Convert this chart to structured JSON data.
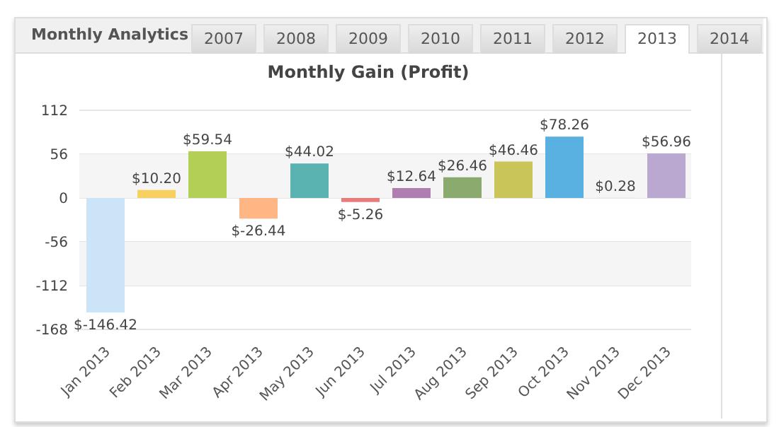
{
  "chart_data": {
    "type": "bar",
    "title": "Monthly Gain (Profit)",
    "categories": [
      "Jan 2013",
      "Feb 2013",
      "Mar 2013",
      "Apr 2013",
      "May 2013",
      "Jun 2013",
      "Jul 2013",
      "Aug 2013",
      "Sep 2013",
      "Oct 2013",
      "Nov 2013",
      "Dec 2013"
    ],
    "values": [
      -146.42,
      10.2,
      59.54,
      -26.44,
      44.02,
      -5.26,
      12.64,
      26.46,
      46.46,
      78.26,
      0.28,
      56.96
    ],
    "colors": [
      "#cce4f7",
      "#f7d060",
      "#b3cf55",
      "#ffb685",
      "#5ab3b0",
      "#e87b7b",
      "#b07db0",
      "#8aaa6e",
      "#c9c558",
      "#58b1e0",
      "#d9d9d9",
      "#bba8d1"
    ],
    "value_labels": [
      "$-146.42",
      "$10.20",
      "$59.54",
      "$-26.44",
      "$44.02",
      "$-5.26",
      "$12.64",
      "$26.46",
      "$46.46",
      "$78.26",
      "$0.28",
      "$56.96"
    ],
    "ylim": [
      -168,
      112
    ],
    "yticks": [
      -168,
      -112,
      -56,
      0,
      56,
      112
    ],
    "bands": [
      {
        "axis": "y",
        "from": 0,
        "to": 56,
        "color": "#f5f5f5"
      },
      {
        "axis": "y",
        "from": -112,
        "to": -56,
        "color": "#f5f5f5"
      }
    ],
    "grid": "y",
    "annotations": [
      "Monthly Analytics",
      "2007",
      "2008",
      "2009",
      "2010",
      "2011",
      "2012",
      "2013",
      "2014"
    ]
  }
}
